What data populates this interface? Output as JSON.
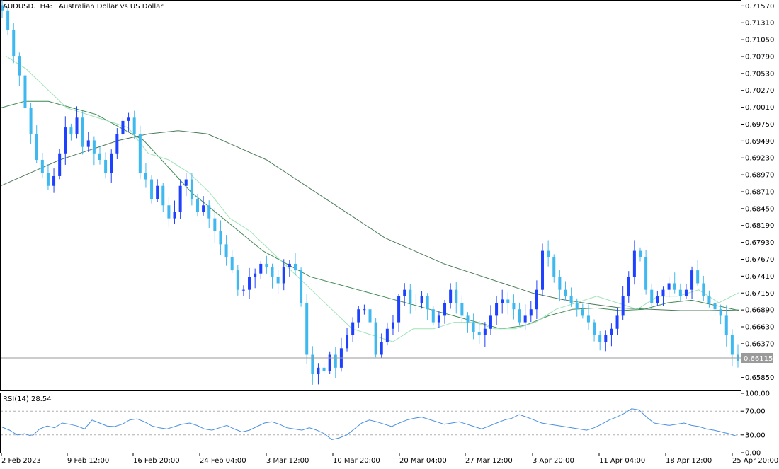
{
  "header": {
    "symbol": "AUDUSD.",
    "timeframe": "H4:",
    "description": "Australian Dollar vs US Dollar"
  },
  "indicator": {
    "label": "RSI(14) 28.54",
    "levels": [
      "100.00",
      "70.00",
      "30.00",
      "0.00"
    ]
  },
  "current_price_label": "0.66115",
  "colors": {
    "candle_up": "#1e40ff",
    "candle_down": "#3fb8f0",
    "ma_fast": "#9fe3b8",
    "ma_mid": "#3f8a55",
    "ma_slow": "#4c7a5a",
    "rsi_line": "#4a90e2",
    "grid": "#cfcfcf",
    "axis": "#000000"
  },
  "chart_data": {
    "type": "candlestick",
    "price_axis_ticks": [
      "0.71570",
      "0.71310",
      "0.71050",
      "0.70790",
      "0.70530",
      "0.70270",
      "0.70010",
      "0.69750",
      "0.69490",
      "0.69230",
      "0.68970",
      "0.68710",
      "0.68450",
      "0.68190",
      "0.67930",
      "0.67670",
      "0.67410",
      "0.67150",
      "0.66890",
      "0.66630",
      "0.66370",
      "0.66115",
      "0.65850"
    ],
    "time_axis_labels": [
      "2 Feb 2023",
      "9 Feb 12:00",
      "16 Feb 20:00",
      "24 Feb 04:00",
      "3 Mar 12:00",
      "10 Mar 20:00",
      "20 Mar 04:00",
      "27 Mar 12:00",
      "3 Apr 20:00",
      "11 Apr 04:00",
      "18 Apr 12:00",
      "25 Apr 20:00"
    ],
    "ylim": [
      0.6565,
      0.7165
    ],
    "close_path": [
      0.715,
      0.712,
      0.708,
      0.705,
      0.7,
      0.696,
      0.692,
      0.69,
      0.688,
      0.6895,
      0.693,
      0.697,
      0.696,
      0.6985,
      0.694,
      0.695,
      0.693,
      0.692,
      0.69,
      0.693,
      0.696,
      0.698,
      0.6985,
      0.696,
      0.69,
      0.689,
      0.686,
      0.688,
      0.685,
      0.683,
      0.684,
      0.688,
      0.689,
      0.686,
      0.684,
      0.685,
      0.683,
      0.681,
      0.679,
      0.677,
      0.675,
      0.672,
      0.672,
      0.674,
      0.6745,
      0.676,
      0.6755,
      0.674,
      0.673,
      0.6755,
      0.676,
      0.675,
      0.67,
      0.662,
      0.659,
      0.66,
      0.6595,
      0.662,
      0.66,
      0.663,
      0.665,
      0.667,
      0.669,
      0.669,
      0.667,
      0.662,
      0.664,
      0.666,
      0.667,
      0.671,
      0.672,
      0.67,
      0.67,
      0.671,
      0.669,
      0.667,
      0.668,
      0.67,
      0.672,
      0.67,
      0.668,
      0.667,
      0.6655,
      0.665,
      0.666,
      0.668,
      0.67,
      0.6705,
      0.67,
      0.669,
      0.667,
      0.668,
      0.669,
      0.672,
      0.678,
      0.677,
      0.674,
      0.672,
      0.671,
      0.67,
      0.669,
      0.668,
      0.667,
      0.665,
      0.664,
      0.665,
      0.666,
      0.668,
      0.671,
      0.674,
      0.678,
      0.677,
      0.672,
      0.67,
      0.671,
      0.672,
      0.673,
      0.672,
      0.671,
      0.672,
      0.675,
      0.673,
      0.671,
      0.67,
      0.669,
      0.668,
      0.665,
      0.662,
      0.661
    ],
    "ma_fast_path": [
      0.708,
      0.706,
      0.703,
      0.7,
      0.699,
      0.698,
      0.697,
      0.693,
      0.692,
      0.69,
      0.687,
      0.683,
      0.681,
      0.678,
      0.675,
      0.672,
      0.669,
      0.666,
      0.665,
      0.664,
      0.666,
      0.666,
      0.667,
      0.667,
      0.666,
      0.666,
      0.667,
      0.669,
      0.67,
      0.671,
      0.67,
      0.669,
      0.671,
      0.671,
      0.672,
      0.67,
      0.6716
    ],
    "ma_mid_path": [
      0.7,
      0.701,
      0.701,
      0.7,
      0.699,
      0.697,
      0.695,
      0.691,
      0.687,
      0.684,
      0.681,
      0.678,
      0.676,
      0.674,
      0.673,
      0.672,
      0.671,
      0.67,
      0.669,
      0.668,
      0.667,
      0.666,
      0.6665,
      0.668,
      0.669,
      0.6692,
      0.6688,
      0.669,
      0.67,
      0.6704,
      0.6696,
      0.6688
    ],
    "ma_slow_path": [
      0.688,
      0.69,
      0.692,
      0.6935,
      0.695,
      0.696,
      0.6965,
      0.696,
      0.694,
      0.692,
      0.689,
      0.686,
      0.683,
      0.68,
      0.678,
      0.676,
      0.6745,
      0.673,
      0.6715,
      0.6705,
      0.6698,
      0.6692,
      0.669,
      0.6688,
      0.6688,
      0.6689
    ],
    "rsi_path": [
      43,
      38,
      30,
      32,
      28,
      40,
      45,
      42,
      50,
      48,
      45,
      40,
      55,
      50,
      45,
      44,
      48,
      55,
      57,
      52,
      45,
      42,
      40,
      44,
      48,
      50,
      46,
      40,
      38,
      42,
      46,
      40,
      35,
      38,
      44,
      50,
      52,
      48,
      42,
      40,
      38,
      42,
      38,
      32,
      22,
      25,
      30,
      40,
      50,
      55,
      52,
      48,
      44,
      50,
      55,
      58,
      60,
      56,
      52,
      48,
      50,
      52,
      48,
      44,
      40,
      45,
      50,
      55,
      58,
      64,
      60,
      55,
      50,
      48,
      46,
      44,
      42,
      40,
      38,
      42,
      48,
      55,
      60,
      66,
      74,
      72,
      60,
      50,
      48,
      46,
      48,
      50,
      46,
      44,
      40,
      38,
      35,
      32,
      28
    ]
  }
}
